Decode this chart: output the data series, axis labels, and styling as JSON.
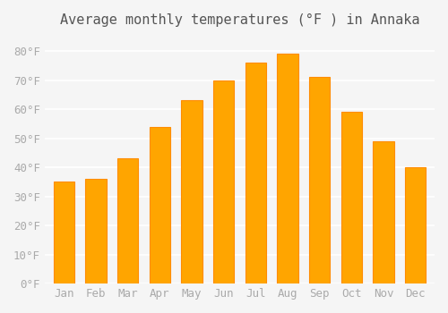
{
  "title": "Average monthly temperatures (°F ) in Annaka",
  "months": [
    "Jan",
    "Feb",
    "Mar",
    "Apr",
    "May",
    "Jun",
    "Jul",
    "Aug",
    "Sep",
    "Oct",
    "Nov",
    "Dec"
  ],
  "values": [
    35,
    36,
    43,
    54,
    63,
    70,
    76,
    79,
    71,
    59,
    49,
    40
  ],
  "bar_color": "#FFA500",
  "bar_edge_color": "#FF8C00",
  "ylim": [
    0,
    85
  ],
  "yticks": [
    0,
    10,
    20,
    30,
    40,
    50,
    60,
    70,
    80
  ],
  "ytick_labels": [
    "0°F",
    "10°F",
    "20°F",
    "30°F",
    "40°F",
    "50°F",
    "60°F",
    "70°F",
    "80°F"
  ],
  "background_color": "#f5f5f5",
  "grid_color": "#ffffff",
  "title_fontsize": 11,
  "tick_fontsize": 9
}
